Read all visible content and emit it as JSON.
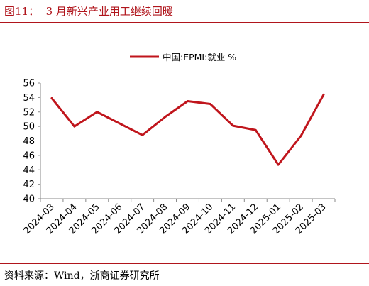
{
  "figure": {
    "title": "图11：  3 月新兴产业用工继续回暖",
    "source": "资料来源：Wind，浙商证券研究所"
  },
  "colors": {
    "accent": "#b0151c",
    "series": "#c0151c"
  },
  "chart_data": {
    "type": "line",
    "categories": [
      "2024-03",
      "2024-04",
      "2024-05",
      "2024-06",
      "2024-07",
      "2024-08",
      "2024-09",
      "2024-10",
      "2024-11",
      "2024-12",
      "2025-01",
      "2025-02",
      "2025-03"
    ],
    "series": [
      {
        "name": "中国:EPMI:就业 %",
        "values": [
          53.9,
          50.0,
          52.0,
          50.4,
          48.8,
          51.3,
          53.5,
          53.1,
          50.1,
          49.5,
          44.7,
          48.7,
          54.4
        ]
      }
    ],
    "ylim": [
      40,
      56
    ],
    "yticks": [
      "40",
      "42",
      "44",
      "46",
      "48",
      "50",
      "52",
      "54",
      "56"
    ],
    "grid": false,
    "legend": "top-center",
    "xlabel": "",
    "ylabel": ""
  }
}
